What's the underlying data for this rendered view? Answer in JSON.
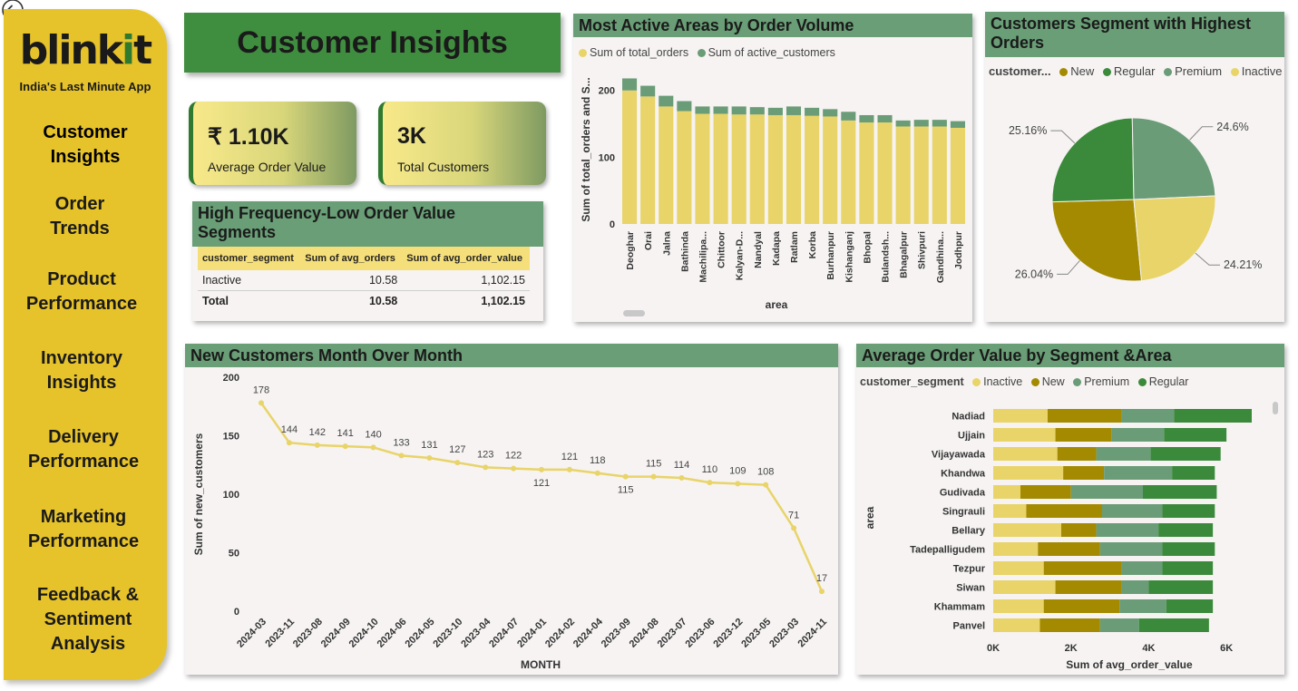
{
  "app": {
    "logo_main": "blinkit",
    "tagline": "India's Last Minute App"
  },
  "sidebar": {
    "items": [
      {
        "line1": "Customer",
        "line2": "Insights",
        "line3": ""
      },
      {
        "line1": "Order",
        "line2": "Trends",
        "line3": ""
      },
      {
        "line1": "Product",
        "line2": "Performance",
        "line3": ""
      },
      {
        "line1": "Inventory",
        "line2": "Insights",
        "line3": ""
      },
      {
        "line1": "Delivery",
        "line2": "Performance",
        "line3": ""
      },
      {
        "line1": "Marketing",
        "line2": "Performance",
        "line3": ""
      },
      {
        "line1": "Feedback &",
        "line2": "Sentiment",
        "line3": "Analysis"
      }
    ]
  },
  "page": {
    "title": "Customer Insights"
  },
  "kpis": {
    "aov": {
      "value": "₹ 1.10K",
      "label": "Average Order Value"
    },
    "customers": {
      "value": "3K",
      "label": "Total Customers"
    }
  },
  "colors": {
    "yellow": "#e8d468",
    "green_light": "#6a9c77",
    "green_dark": "#3b8a3b",
    "olive": "#a38a00",
    "header_green": "#699e76"
  },
  "hf_table": {
    "title_line1": "High Frequency-Low Order Value",
    "title_line2": "Segments",
    "headers": [
      "customer_segment",
      "Sum of avg_orders",
      "Sum of avg_order_value"
    ],
    "rows": [
      [
        "Inactive",
        "10.58",
        "1,102.15"
      ]
    ],
    "total": [
      "Total",
      "10.58",
      "1,102.15"
    ]
  },
  "icons": {
    "back": "back-arrow-icon"
  },
  "chart_data": [
    {
      "id": "active_areas",
      "type": "bar",
      "stacked": true,
      "title": "Most Active Areas by Order Volume",
      "legend": [
        "Sum of total_orders",
        "Sum of active_customers"
      ],
      "xlabel": "area",
      "ylabel": "Sum of total_orders and S...",
      "ylim": [
        0,
        220
      ],
      "yticks": [
        0,
        100,
        200
      ],
      "categories": [
        "Deoghar",
        "Orai",
        "Jalna",
        "Bathinda",
        "Machilipa...",
        "Chittoor",
        "Kalyan-D...",
        "Nandyal",
        "Kadapa",
        "Ratlam",
        "Korba",
        "Burhanpur",
        "Kishanganj",
        "Bhopal",
        "Bulandsh...",
        "Bhagalpur",
        "Shivpuri",
        "Gandhina...",
        "Jodhpur"
      ],
      "series": [
        {
          "name": "Sum of total_orders",
          "values": [
            200,
            191,
            176,
            169,
            165,
            165,
            164,
            164,
            163,
            163,
            162,
            161,
            155,
            152,
            152,
            146,
            146,
            146,
            144
          ]
        },
        {
          "name": "Sum of active_customers",
          "values": [
            18,
            16,
            16,
            15,
            11,
            11,
            12,
            11,
            11,
            13,
            12,
            11,
            13,
            11,
            11,
            9,
            10,
            10,
            10
          ]
        }
      ]
    },
    {
      "id": "segment_pie",
      "type": "pie",
      "title": "Customers Segment with Highest Orders",
      "legend_title": "customer...",
      "categories": [
        "New",
        "Regular",
        "Premium",
        "Inactive"
      ],
      "values": [
        26.04,
        25.16,
        24.6,
        24.21
      ],
      "labels": [
        "26.04%",
        "25.16%",
        "24.6%",
        "24.21%"
      ]
    },
    {
      "id": "new_customers",
      "type": "line",
      "title": "New Customers Month Over Month",
      "xlabel": "MONTH",
      "ylabel": "Sum of new_customers",
      "ylim": [
        0,
        200
      ],
      "yticks": [
        0,
        50,
        100,
        150,
        200
      ],
      "x": [
        "2024-03",
        "2023-11",
        "2023-08",
        "2024-09",
        "2024-10",
        "2024-06",
        "2024-05",
        "2023-10",
        "2023-04",
        "2024-07",
        "2024-01",
        "2024-02",
        "2024-04",
        "2023-09",
        "2024-08",
        "2023-07",
        "2023-06",
        "2023-12",
        "2023-05",
        "2023-03",
        "2024-11"
      ],
      "values": [
        178,
        144,
        142,
        141,
        140,
        133,
        131,
        127,
        123,
        122,
        121,
        121,
        118,
        115,
        115,
        114,
        110,
        109,
        108,
        71,
        17
      ]
    },
    {
      "id": "aov_segment_area",
      "type": "bar",
      "orientation": "horizontal",
      "stacked": true,
      "title": "Average Order Value by Segment &Area",
      "legend_title": "customer_segment",
      "legend": [
        "Inactive",
        "New",
        "Premium",
        "Regular"
      ],
      "xlabel": "Sum of avg_order_value",
      "ylabel": "area",
      "xlim": [
        0,
        7000
      ],
      "xticks": [
        0,
        2000,
        4000,
        6000
      ],
      "xticklabels": [
        "0K",
        "2K",
        "4K",
        "6K"
      ],
      "categories": [
        "Nadiad",
        "Ujjain",
        "Vijayawada",
        "Khandwa",
        "Gudivada",
        "Singrauli",
        "Bellary",
        "Tadepalligudem",
        "Tezpur",
        "Siwan",
        "Khammam",
        "Panvel"
      ],
      "series": [
        {
          "name": "Inactive",
          "values": [
            1400,
            1600,
            1650,
            1800,
            700,
            850,
            1750,
            1150,
            1300,
            1600,
            1300,
            1200
          ]
        },
        {
          "name": "New",
          "values": [
            1900,
            1450,
            1000,
            1050,
            1300,
            1950,
            900,
            1600,
            2000,
            1700,
            1950,
            1550
          ]
        },
        {
          "name": "Premium",
          "values": [
            1350,
            1350,
            1400,
            1750,
            1850,
            1550,
            1600,
            1600,
            1050,
            700,
            1200,
            1000
          ]
        },
        {
          "name": "Regular",
          "values": [
            2000,
            1600,
            1800,
            1100,
            1900,
            1350,
            1400,
            1350,
            1300,
            1650,
            1200,
            1800
          ]
        }
      ]
    }
  ]
}
